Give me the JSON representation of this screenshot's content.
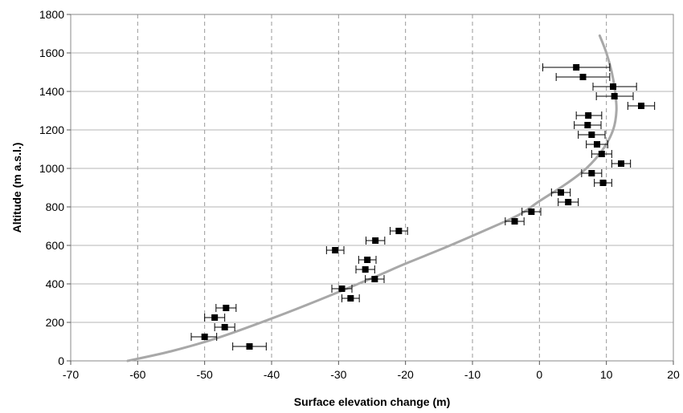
{
  "chart_data": {
    "type": "scatter",
    "title": "",
    "xlabel": "Surface elevation change (m)",
    "ylabel": "Altitude (m a.s.l.)",
    "xlim": [
      -70,
      20
    ],
    "ylim": [
      0,
      1800
    ],
    "x_ticks": [
      -70,
      -60,
      -50,
      -40,
      -30,
      -20,
      -10,
      0,
      10,
      20
    ],
    "y_ticks": [
      0,
      200,
      400,
      600,
      800,
      1000,
      1200,
      1400,
      1600,
      1800
    ],
    "grid": {
      "vertical": "dashed",
      "horizontal": "solid"
    },
    "legend": "none",
    "colors": {
      "points": "#000000",
      "curve": "#a8a8a8",
      "grid_v": "#9a9a9a",
      "grid_h": "#b4b4b4"
    },
    "series": [
      {
        "type": "scatter",
        "points": [
          {
            "x": 5.5,
            "y": 1525,
            "xerr_low": 0.5,
            "xerr_high": 10.5
          },
          {
            "x": 6.5,
            "y": 1475,
            "xerr_low": 2.5,
            "xerr_high": 10.5
          },
          {
            "x": 11.0,
            "y": 1425,
            "xerr_low": 8.0,
            "xerr_high": 14.5
          },
          {
            "x": 11.2,
            "y": 1375,
            "xerr_low": 8.5,
            "xerr_high": 14.0
          },
          {
            "x": 15.2,
            "y": 1325,
            "xerr_low": 13.2,
            "xerr_high": 17.2
          },
          {
            "x": 7.3,
            "y": 1275,
            "xerr_low": 5.5,
            "xerr_high": 9.3
          },
          {
            "x": 7.2,
            "y": 1225,
            "xerr_low": 5.2,
            "xerr_high": 9.2
          },
          {
            "x": 7.8,
            "y": 1175,
            "xerr_low": 5.8,
            "xerr_high": 9.8
          },
          {
            "x": 8.6,
            "y": 1125,
            "xerr_low": 7.0,
            "xerr_high": 10.2
          },
          {
            "x": 9.3,
            "y": 1075,
            "xerr_low": 7.8,
            "xerr_high": 10.8
          },
          {
            "x": 12.2,
            "y": 1025,
            "xerr_low": 10.8,
            "xerr_high": 13.6
          },
          {
            "x": 7.8,
            "y": 975,
            "xerr_low": 6.3,
            "xerr_high": 9.3
          },
          {
            "x": 9.5,
            "y": 925,
            "xerr_low": 8.2,
            "xerr_high": 10.8
          },
          {
            "x": 3.2,
            "y": 875,
            "xerr_low": 1.8,
            "xerr_high": 4.6
          },
          {
            "x": 4.3,
            "y": 825,
            "xerr_low": 2.8,
            "xerr_high": 5.8
          },
          {
            "x": -1.2,
            "y": 775,
            "xerr_low": -2.6,
            "xerr_high": 0.2
          },
          {
            "x": -3.7,
            "y": 725,
            "xerr_low": -5.1,
            "xerr_high": -2.3
          },
          {
            "x": -21.0,
            "y": 675,
            "xerr_low": -22.3,
            "xerr_high": -19.7
          },
          {
            "x": -24.5,
            "y": 625,
            "xerr_low": -25.9,
            "xerr_high": -23.1
          },
          {
            "x": -30.5,
            "y": 575,
            "xerr_low": -31.8,
            "xerr_high": -29.2
          },
          {
            "x": -25.7,
            "y": 525,
            "xerr_low": -27.0,
            "xerr_high": -24.4
          },
          {
            "x": -26.0,
            "y": 475,
            "xerr_low": -27.4,
            "xerr_high": -24.6
          },
          {
            "x": -24.6,
            "y": 425,
            "xerr_low": -26.0,
            "xerr_high": -23.2
          },
          {
            "x": -29.5,
            "y": 375,
            "xerr_low": -31.0,
            "xerr_high": -28.0
          },
          {
            "x": -28.2,
            "y": 325,
            "xerr_low": -29.5,
            "xerr_high": -26.9
          },
          {
            "x": -46.8,
            "y": 275,
            "xerr_low": -48.3,
            "xerr_high": -45.3
          },
          {
            "x": -48.5,
            "y": 225,
            "xerr_low": -50.0,
            "xerr_high": -47.0
          },
          {
            "x": -47.0,
            "y": 175,
            "xerr_low": -48.5,
            "xerr_high": -45.5
          },
          {
            "x": -50.0,
            "y": 125,
            "xerr_low": -52.0,
            "xerr_high": -48.2
          },
          {
            "x": -43.3,
            "y": 75,
            "xerr_low": -45.8,
            "xerr_high": -40.8
          }
        ]
      },
      {
        "type": "line",
        "curve": [
          {
            "x": -61.5,
            "y": 0
          },
          {
            "x": -55.0,
            "y": 50
          },
          {
            "x": -48.0,
            "y": 120
          },
          {
            "x": -40.0,
            "y": 220
          },
          {
            "x": -33.0,
            "y": 315
          },
          {
            "x": -25.0,
            "y": 430
          },
          {
            "x": -20.0,
            "y": 505
          },
          {
            "x": -14.0,
            "y": 590
          },
          {
            "x": -8.0,
            "y": 680
          },
          {
            "x": -3.0,
            "y": 760
          },
          {
            "x": 0.0,
            "y": 830
          },
          {
            "x": 4.0,
            "y": 920
          },
          {
            "x": 7.0,
            "y": 1000
          },
          {
            "x": 9.5,
            "y": 1100
          },
          {
            "x": 11.0,
            "y": 1200
          },
          {
            "x": 11.5,
            "y": 1300
          },
          {
            "x": 11.3,
            "y": 1400
          },
          {
            "x": 10.8,
            "y": 1500
          },
          {
            "x": 10.0,
            "y": 1600
          },
          {
            "x": 9.0,
            "y": 1690
          }
        ]
      }
    ]
  }
}
